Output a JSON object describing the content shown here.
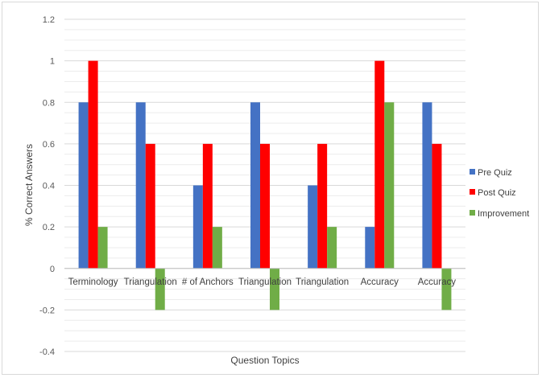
{
  "chart_data": {
    "type": "bar",
    "title": "",
    "xlabel": "Question Topics",
    "ylabel": "% Correct  Answers",
    "ylim": [
      -0.4,
      1.2
    ],
    "yticks": [
      1.2,
      1,
      0.8,
      0.6,
      0.4,
      0.2,
      0,
      -0.2,
      -0.4
    ],
    "ytick_labels": [
      "1.2",
      "1",
      "0.8",
      "0.6",
      "0.4",
      "0.2",
      "0",
      "-0.2",
      "-0.4"
    ],
    "categories": [
      "Terminology",
      "Triangulation",
      "# of Anchors",
      "Triangulation",
      "Triangulation",
      "Accuracy",
      "Accuracy"
    ],
    "series": [
      {
        "name": "Pre Quiz",
        "color": "#4472c4",
        "values": [
          0.8,
          0.8,
          0.4,
          0.8,
          0.4,
          0.2,
          0.8
        ]
      },
      {
        "name": "Post Quiz",
        "color": "#ff0000",
        "values": [
          1.0,
          0.6,
          0.6,
          0.6,
          0.6,
          1.0,
          0.6
        ]
      },
      {
        "name": "Improvement",
        "color": "#70ad47",
        "values": [
          0.2,
          -0.2,
          0.2,
          -0.2,
          0.2,
          0.8,
          -0.2
        ]
      }
    ],
    "grid": true,
    "legend_position": "right"
  }
}
